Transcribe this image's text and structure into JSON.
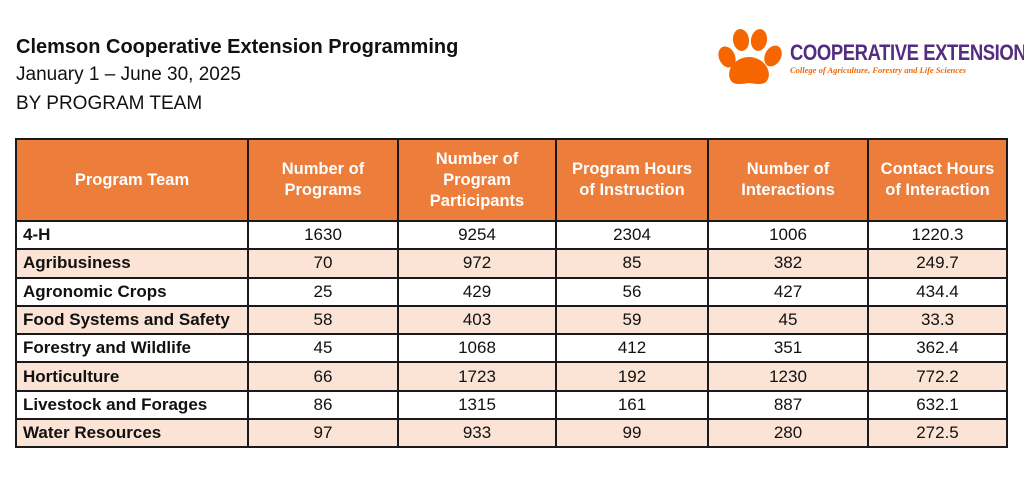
{
  "header": {
    "title": "Clemson Cooperative Extension Programming",
    "date_range": "January 1 – June 30, 2025",
    "grouping": "BY PROGRAM TEAM"
  },
  "logo": {
    "icon": "paw-icon",
    "name": "COOPERATIVE EXTENSION",
    "tagline": "College of Agriculture, Forestry and Life Sciences",
    "colors": {
      "orange": "#f56600",
      "purple": "#522d80"
    }
  },
  "table": {
    "header_color": "#ec7d3a",
    "alt_row_color": "#fbe3d5",
    "columns": [
      "Program Team",
      "Number of Programs",
      "Number of Program Participants",
      "Program Hours of Instruction",
      "Number of Interactions",
      "Contact Hours of Interaction"
    ],
    "rows": [
      [
        "4-H",
        "1630",
        "9254",
        "2304",
        "1006",
        "1220.3"
      ],
      [
        "Agribusiness",
        "70",
        "972",
        "85",
        "382",
        "249.7"
      ],
      [
        "Agronomic Crops",
        "25",
        "429",
        "56",
        "427",
        "434.4"
      ],
      [
        "Food Systems and Safety",
        "58",
        "403",
        "59",
        "45",
        "33.3"
      ],
      [
        "Forestry and Wildlife",
        "45",
        "1068",
        "412",
        "351",
        "362.4"
      ],
      [
        "Horticulture",
        "66",
        "1723",
        "192",
        "1230",
        "772.2"
      ],
      [
        "Livestock and Forages",
        "86",
        "1315",
        "161",
        "887",
        "632.1"
      ],
      [
        "Water Resources",
        "97",
        "933",
        "99",
        "280",
        "272.5"
      ]
    ]
  }
}
